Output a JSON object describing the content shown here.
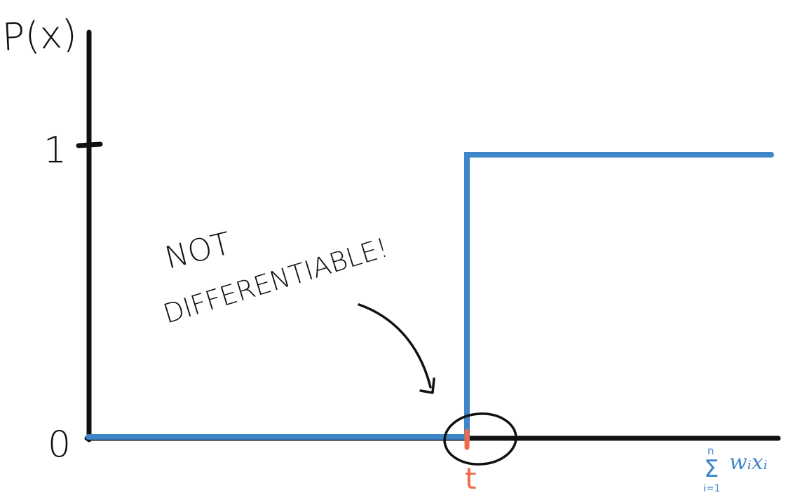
{
  "labels": {
    "y_axis": "P(x)",
    "tick_one": "1",
    "tick_zero": "0",
    "threshold": "t",
    "x_axis_sum_top": "n",
    "x_axis_sum_symbol": "Σ",
    "x_axis_sum_bottom": "i=1",
    "x_axis_term": "wᵢxᵢ",
    "annotation_line1": "NOT",
    "annotation_line2": "DIFFERENTIABLE!"
  },
  "colors": {
    "ink": "#111111",
    "step": "#3f86c9",
    "threshold": "#ef6a4a",
    "background": "#ffffff"
  },
  "diagram": {
    "type": "step-function",
    "y_levels": [
      0,
      1
    ],
    "threshold_label": "t",
    "highlight": "circle around threshold point",
    "arrow": "annotation points to discontinuity"
  }
}
